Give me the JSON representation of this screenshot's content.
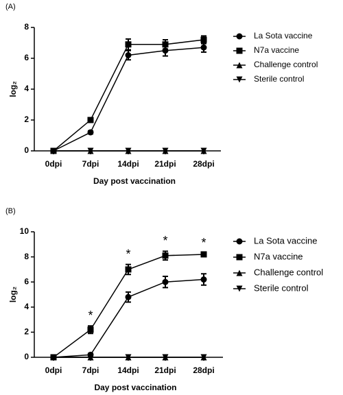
{
  "chart_data": [
    {
      "type": "line",
      "panel": "(A)",
      "y_label": "log₂",
      "x_label": "Day post vaccination",
      "categories": [
        "0dpi",
        "7dpi",
        "14dpi",
        "21dpi",
        "28dpi"
      ],
      "ylim": [
        0,
        8
      ],
      "yticks": [
        0,
        2,
        4,
        6,
        8
      ],
      "series": [
        {
          "name": "La Sota vaccine",
          "color": "#000000",
          "marker": "circle",
          "values": [
            0,
            1.2,
            6.2,
            6.5,
            6.7
          ],
          "errors": [
            0,
            0.1,
            0.3,
            0.35,
            0.3
          ]
        },
        {
          "name": "N7a vaccine",
          "color": "#000000",
          "marker": "square",
          "values": [
            0,
            2.0,
            6.9,
            6.9,
            7.2
          ],
          "errors": [
            0,
            0.15,
            0.35,
            0.3,
            0.25
          ]
        },
        {
          "name": "Challenge control",
          "color": "#000000",
          "marker": "triangle-up",
          "values": [
            0,
            0,
            0,
            0,
            0
          ]
        },
        {
          "name": "Sterile control",
          "color": "#000000",
          "marker": "triangle-down",
          "values": [
            0,
            0,
            0,
            0,
            0
          ]
        }
      ]
    },
    {
      "type": "line",
      "panel": "(B)",
      "y_label": "log₂",
      "x_label": "Day post vaccination",
      "categories": [
        "0dpi",
        "7dpi",
        "14dpi",
        "21dpi",
        "28dpi"
      ],
      "ylim": [
        0,
        10
      ],
      "yticks": [
        0,
        2,
        4,
        6,
        8,
        10
      ],
      "series": [
        {
          "name": "La Sota vaccine",
          "color": "#000000",
          "marker": "circle",
          "values": [
            0,
            0.2,
            4.8,
            6.0,
            6.2
          ],
          "errors": [
            0,
            0.1,
            0.4,
            0.45,
            0.45
          ]
        },
        {
          "name": "N7a vaccine",
          "color": "#000000",
          "marker": "square",
          "values": [
            0,
            2.2,
            7.0,
            8.1,
            8.2
          ],
          "errors": [
            0,
            0.3,
            0.4,
            0.35,
            0.1
          ],
          "annotations": [
            null,
            "*",
            "*",
            "*",
            "*"
          ]
        },
        {
          "name": "Challenge control",
          "color": "#000000",
          "marker": "triangle-up",
          "values": [
            0,
            0,
            0,
            0,
            0
          ]
        },
        {
          "name": "Sterile control",
          "color": "#000000",
          "marker": "triangle-down",
          "values": [
            0,
            0,
            0,
            0,
            0
          ]
        }
      ]
    }
  ]
}
